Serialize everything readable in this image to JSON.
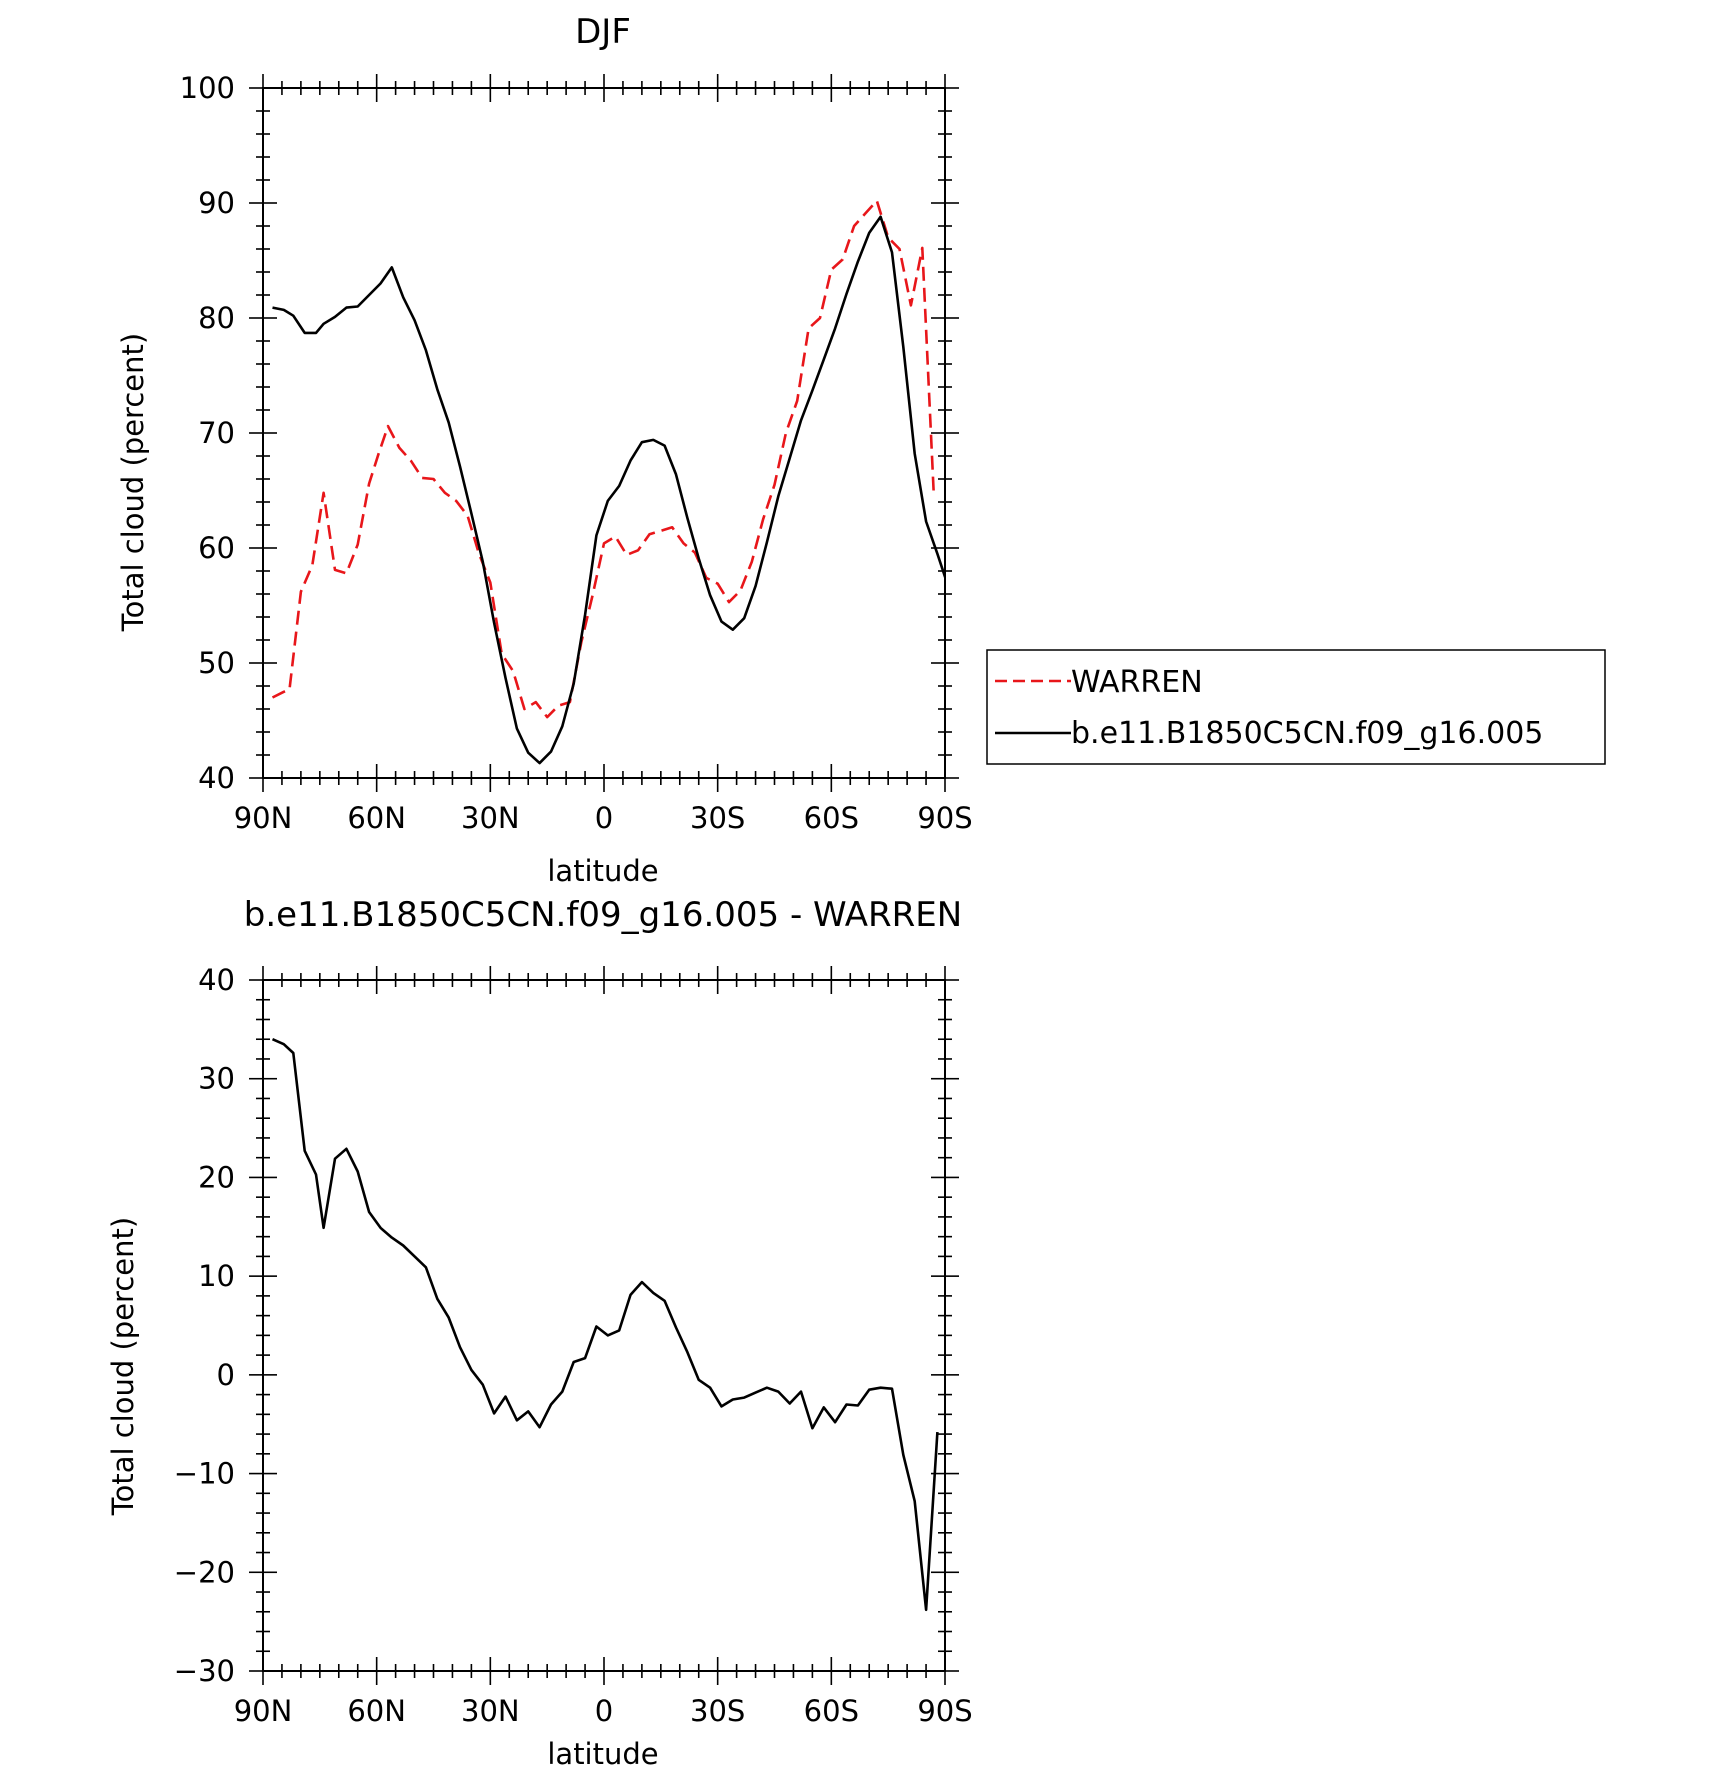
{
  "chart_data": [
    {
      "type": "line",
      "title": "DJF",
      "xlabel": "latitude",
      "ylabel": "Total cloud (percent)",
      "xlim": [
        90,
        -90
      ],
      "ylim": [
        40,
        100
      ],
      "x_ticks": [
        90,
        60,
        30,
        0,
        -30,
        -60,
        -90
      ],
      "x_tick_labels": [
        "90N",
        "60N",
        "30N",
        "0",
        "30S",
        "60S",
        "90S"
      ],
      "y_ticks": [
        40,
        50,
        60,
        70,
        80,
        90,
        100
      ],
      "y_tick_labels": [
        "40",
        "50",
        "60",
        "70",
        "80",
        "90",
        "100"
      ],
      "grid": false,
      "legend": "right",
      "series": [
        {
          "name": "WARREN",
          "color": "#e8161a",
          "dash": "dashed",
          "points": [
            [
              87.5,
              47.0
            ],
            [
              84.5,
              47.5
            ],
            [
              83,
              47.7
            ],
            [
              80,
              56.2
            ],
            [
              77,
              58.5
            ],
            [
              74,
              64.8
            ],
            [
              71,
              58.1
            ],
            [
              68,
              57.8
            ],
            [
              65,
              60.3
            ],
            [
              62,
              65.6
            ],
            [
              59.5,
              68.2
            ],
            [
              57,
              70.6
            ],
            [
              54,
              68.7
            ],
            [
              51,
              67.6
            ],
            [
              48,
              66.1
            ],
            [
              45,
              66.0
            ],
            [
              42,
              64.8
            ],
            [
              39,
              64.1
            ],
            [
              36,
              62.8
            ],
            [
              33,
              59.5
            ],
            [
              30,
              57.0
            ],
            [
              27,
              50.8
            ],
            [
              24,
              49.3
            ],
            [
              21,
              46.0
            ],
            [
              18,
              46.6
            ],
            [
              15,
              45.3
            ],
            [
              12,
              46.3
            ],
            [
              9,
              46.6
            ],
            [
              6,
              51.8
            ],
            [
              3,
              55.9
            ],
            [
              0,
              60.4
            ],
            [
              -3,
              61.0
            ],
            [
              -6,
              59.4
            ],
            [
              -9,
              59.8
            ],
            [
              -12,
              61.2
            ],
            [
              -15,
              61.5
            ],
            [
              -18,
              61.8
            ],
            [
              -21,
              60.4
            ],
            [
              -24,
              59.6
            ],
            [
              -27,
              57.4
            ],
            [
              -30,
              56.9
            ],
            [
              -33,
              55.3
            ],
            [
              -36,
              56.3
            ],
            [
              -39,
              58.8
            ],
            [
              -42,
              62.5
            ],
            [
              -45,
              65.5
            ],
            [
              -48,
              70.0
            ],
            [
              -51,
              72.8
            ],
            [
              -54,
              79.1
            ],
            [
              -57,
              80.0
            ],
            [
              -60,
              84.2
            ],
            [
              -63,
              85.1
            ],
            [
              -66,
              88.0
            ],
            [
              -69,
              89.1
            ],
            [
              -72,
              90.2
            ],
            [
              -75,
              87.0
            ],
            [
              -78,
              86.0
            ],
            [
              -81,
              81.1
            ],
            [
              -84,
              86.1
            ],
            [
              -87,
              65.0
            ]
          ]
        },
        {
          "name": "b.e11.B1850C5CN.f09_g16.005",
          "color": "#000000",
          "dash": "solid",
          "points": [
            [
              87.5,
              80.9
            ],
            [
              84.5,
              80.7
            ],
            [
              82,
              80.2
            ],
            [
              79,
              78.7
            ],
            [
              76,
              78.7
            ],
            [
              74,
              79.5
            ],
            [
              71,
              80.1
            ],
            [
              68,
              80.9
            ],
            [
              65,
              81.0
            ],
            [
              62,
              82.0
            ],
            [
              59,
              83.0
            ],
            [
              56,
              84.4
            ],
            [
              53,
              81.8
            ],
            [
              50,
              79.8
            ],
            [
              47,
              77.2
            ],
            [
              44,
              73.8
            ],
            [
              41,
              70.9
            ],
            [
              38,
              67.1
            ],
            [
              35,
              63.0
            ],
            [
              32,
              58.8
            ],
            [
              29,
              53.5
            ],
            [
              26,
              48.7
            ],
            [
              23,
              44.3
            ],
            [
              20,
              42.2
            ],
            [
              17,
              41.3
            ],
            [
              14,
              42.3
            ],
            [
              11,
              44.5
            ],
            [
              8,
              48.2
            ],
            [
              5,
              54.2
            ],
            [
              2,
              61.1
            ],
            [
              -1,
              64.1
            ],
            [
              -4,
              65.4
            ],
            [
              -7,
              67.6
            ],
            [
              -10,
              69.2
            ],
            [
              -13,
              69.4
            ],
            [
              -16,
              68.9
            ],
            [
              -19,
              66.4
            ],
            [
              -22,
              62.6
            ],
            [
              -25,
              59.1
            ],
            [
              -28,
              55.9
            ],
            [
              -31,
              53.6
            ],
            [
              -34,
              52.9
            ],
            [
              -37,
              53.9
            ],
            [
              -40,
              56.7
            ],
            [
              -43,
              60.5
            ],
            [
              -46,
              64.5
            ],
            [
              -49,
              67.8
            ],
            [
              -52,
              71.1
            ],
            [
              -55,
              73.7
            ],
            [
              -58,
              76.4
            ],
            [
              -61,
              79.1
            ],
            [
              -64,
              82.1
            ],
            [
              -67,
              84.9
            ],
            [
              -70,
              87.4
            ],
            [
              -73,
              88.8
            ],
            [
              -76,
              85.7
            ],
            [
              -79,
              77.5
            ],
            [
              -82,
              68.2
            ],
            [
              -85,
              62.3
            ],
            [
              -88,
              59.5
            ],
            [
              -91,
              56.5
            ],
            [
              -94,
              55.4
            ],
            [
              -97,
              55.9
            ],
            [
              -100,
              61.8
            ]
          ]
        }
      ]
    },
    {
      "type": "line",
      "title": "b.e11.B1850C5CN.f09_g16.005 - WARREN",
      "xlabel": "latitude",
      "ylabel": "Total cloud (percent)",
      "xlim": [
        90,
        -90
      ],
      "ylim": [
        -30,
        40
      ],
      "x_ticks": [
        90,
        60,
        30,
        0,
        -30,
        -60,
        -90
      ],
      "x_tick_labels": [
        "90N",
        "60N",
        "30N",
        "0",
        "30S",
        "60S",
        "90S"
      ],
      "y_ticks": [
        -30,
        -20,
        -10,
        0,
        10,
        20,
        30,
        40
      ],
      "y_tick_labels": [
        "−30",
        "−20",
        "−10",
        "0",
        "10",
        "20",
        "30",
        "40"
      ],
      "grid": false,
      "series": [
        {
          "color": "#000000",
          "dash": "solid",
          "points": [
            [
              87.5,
              34.0
            ],
            [
              84.5,
              33.5
            ],
            [
              82,
              32.6
            ],
            [
              79,
              22.7
            ],
            [
              76,
              20.3
            ],
            [
              74,
              14.9
            ],
            [
              71,
              21.9
            ],
            [
              68,
              22.9
            ],
            [
              65,
              20.6
            ],
            [
              62,
              16.5
            ],
            [
              59,
              14.9
            ],
            [
              56,
              13.9
            ],
            [
              53,
              13.1
            ],
            [
              50,
              12.0
            ],
            [
              47,
              10.9
            ],
            [
              44,
              7.7
            ],
            [
              41,
              5.8
            ],
            [
              38,
              2.8
            ],
            [
              35,
              0.5
            ],
            [
              32,
              -1.0
            ],
            [
              29,
              -3.9
            ],
            [
              26,
              -2.2
            ],
            [
              23,
              -4.6
            ],
            [
              20,
              -3.7
            ],
            [
              17,
              -5.3
            ],
            [
              14,
              -3.0
            ],
            [
              11,
              -1.7
            ],
            [
              8,
              1.3
            ],
            [
              5,
              1.7
            ],
            [
              2,
              4.9
            ],
            [
              -1,
              4.0
            ],
            [
              -4,
              4.5
            ],
            [
              -7,
              8.1
            ],
            [
              -10,
              9.4
            ],
            [
              -13,
              8.3
            ],
            [
              -16,
              7.5
            ],
            [
              -19,
              4.8
            ],
            [
              -22,
              2.3
            ],
            [
              -25,
              -0.5
            ],
            [
              -28,
              -1.3
            ],
            [
              -31,
              -3.2
            ],
            [
              -34,
              -2.5
            ],
            [
              -37,
              -2.3
            ],
            [
              -40,
              -1.8
            ],
            [
              -43,
              -1.3
            ],
            [
              -46,
              -1.7
            ],
            [
              -49,
              -2.9
            ],
            [
              -52,
              -1.7
            ],
            [
              -55,
              -5.4
            ],
            [
              -58,
              -3.3
            ],
            [
              -61,
              -4.8
            ],
            [
              -64,
              -3.0
            ],
            [
              -67,
              -3.1
            ],
            [
              -70,
              -1.5
            ],
            [
              -73,
              -1.3
            ],
            [
              -76,
              -1.4
            ],
            [
              -79,
              -8.1
            ],
            [
              -82,
              -12.8
            ],
            [
              -85,
              -23.8
            ],
            [
              -88,
              -5.8
            ]
          ]
        }
      ]
    }
  ]
}
